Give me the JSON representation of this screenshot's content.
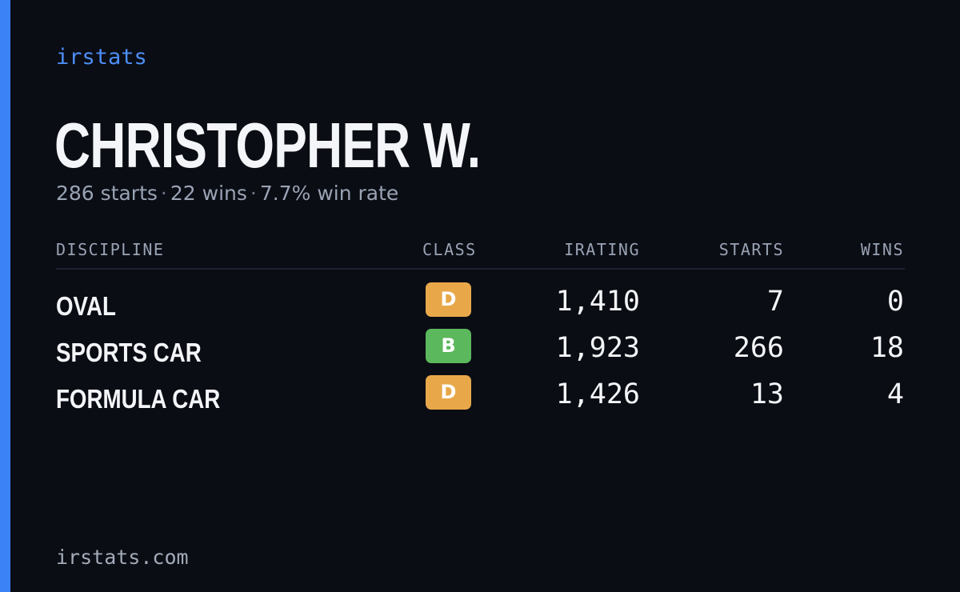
{
  "brand": "irstats",
  "player": {
    "name": "CHRISTOPHER W.",
    "summary": {
      "starts": "286 starts",
      "wins": "22 wins",
      "win_rate": "7.7% win rate",
      "separator": "·"
    }
  },
  "table": {
    "headers": {
      "discipline": "DISCIPLINE",
      "class": "CLASS",
      "irating": "IRATING",
      "starts": "STARTS",
      "wins": "WINS"
    },
    "rows": [
      {
        "discipline": "OVAL",
        "class": "D",
        "irating": "1,410",
        "starts": "7",
        "wins": "0"
      },
      {
        "discipline": "SPORTS CAR",
        "class": "B",
        "irating": "1,923",
        "starts": "266",
        "wins": "18"
      },
      {
        "discipline": "FORMULA CAR",
        "class": "D",
        "irating": "1,426",
        "starts": "13",
        "wins": "4"
      }
    ]
  },
  "footer": {
    "domain": "irstats.com"
  },
  "colors": {
    "background": "#0a0d14",
    "accent": "#3b82f6",
    "class_d": "#e8a84a",
    "class_b": "#5cb85c"
  }
}
